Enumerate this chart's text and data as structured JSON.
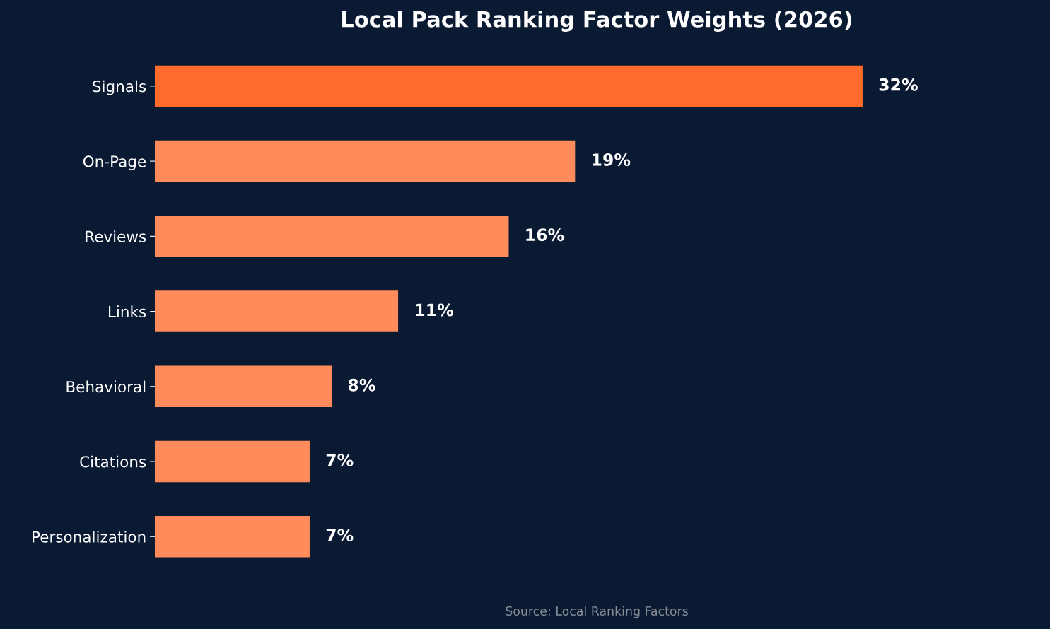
{
  "chart_data": {
    "type": "bar",
    "orientation": "horizontal",
    "title": "Local Pack Ranking Factor Weights (2026)",
    "categories": [
      "Signals",
      "On-Page",
      "Reviews",
      "Links",
      "Behavioral",
      "Citations",
      "Personalization"
    ],
    "values": [
      32,
      19,
      16,
      11,
      8,
      7,
      7
    ],
    "colors": [
      "#ff6b2c",
      "#ff8c5a",
      "#ff8c5a",
      "#ff8c5a",
      "#ff8c5a",
      "#ff8c5a",
      "#ff8c5a"
    ],
    "value_labels": [
      "32%",
      "19%",
      "16%",
      "11%",
      "8%",
      "7%",
      "7%"
    ],
    "annotations": [
      "Source: Local Ranking Factors"
    ],
    "grid": false,
    "tick_labels": "y"
  }
}
